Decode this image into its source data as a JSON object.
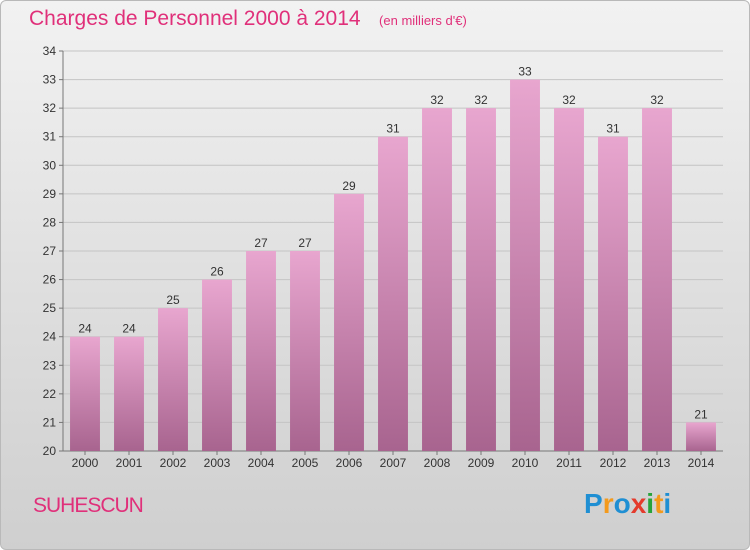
{
  "header": {
    "title": "Charges de Personnel 2000 à 2014",
    "subtitle": "(en milliers d'€)"
  },
  "commune": "SUHESCUN",
  "logo": {
    "text": "Proxiti",
    "letters": [
      {
        "ch": "P",
        "color": "#1f8fd3"
      },
      {
        "ch": "r",
        "color": "#f39a1c"
      },
      {
        "ch": "o",
        "color": "#1f8fd3"
      },
      {
        "ch": "x",
        "color": "#e43b2c"
      },
      {
        "ch": "i",
        "color": "#27a33a"
      },
      {
        "ch": "t",
        "color": "#f39a1c"
      },
      {
        "ch": "i",
        "color": "#1f8fd3"
      }
    ]
  },
  "colors": {
    "accent": "#e0307a",
    "bar_top": "#e8a6cf",
    "bar_bottom": "#a8648f"
  },
  "chart_data": {
    "type": "bar",
    "title": "Charges de Personnel 2000 à 2014",
    "subtitle": "(en milliers d'€)",
    "xlabel": "",
    "ylabel": "",
    "categories": [
      "2000",
      "2001",
      "2002",
      "2003",
      "2004",
      "2005",
      "2006",
      "2007",
      "2008",
      "2009",
      "2010",
      "2011",
      "2012",
      "2013",
      "2014"
    ],
    "values": [
      24,
      24,
      25,
      26,
      27,
      27,
      29,
      31,
      32,
      32,
      33,
      32,
      31,
      32,
      21
    ],
    "ylim": [
      20,
      34
    ],
    "yticks": [
      20,
      21,
      22,
      23,
      24,
      25,
      26,
      27,
      28,
      29,
      30,
      31,
      32,
      33,
      34
    ],
    "grid": "horizontal"
  }
}
